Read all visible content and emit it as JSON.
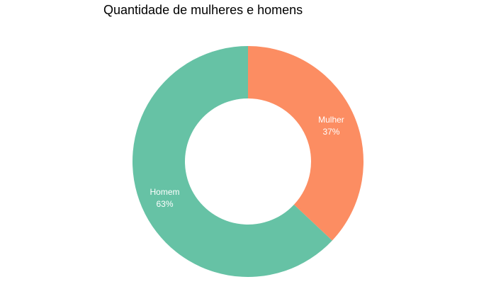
{
  "chart_data": {
    "type": "pie",
    "donut": true,
    "title": "Quantidade de mulheres e homens",
    "slices": [
      {
        "label": "Mulher",
        "value": 37,
        "value_label": "37%",
        "color": "#FC8D62"
      },
      {
        "label": "Homem",
        "value": 63,
        "value_label": "63%",
        "color": "#66C2A5"
      }
    ],
    "legend": "none"
  }
}
